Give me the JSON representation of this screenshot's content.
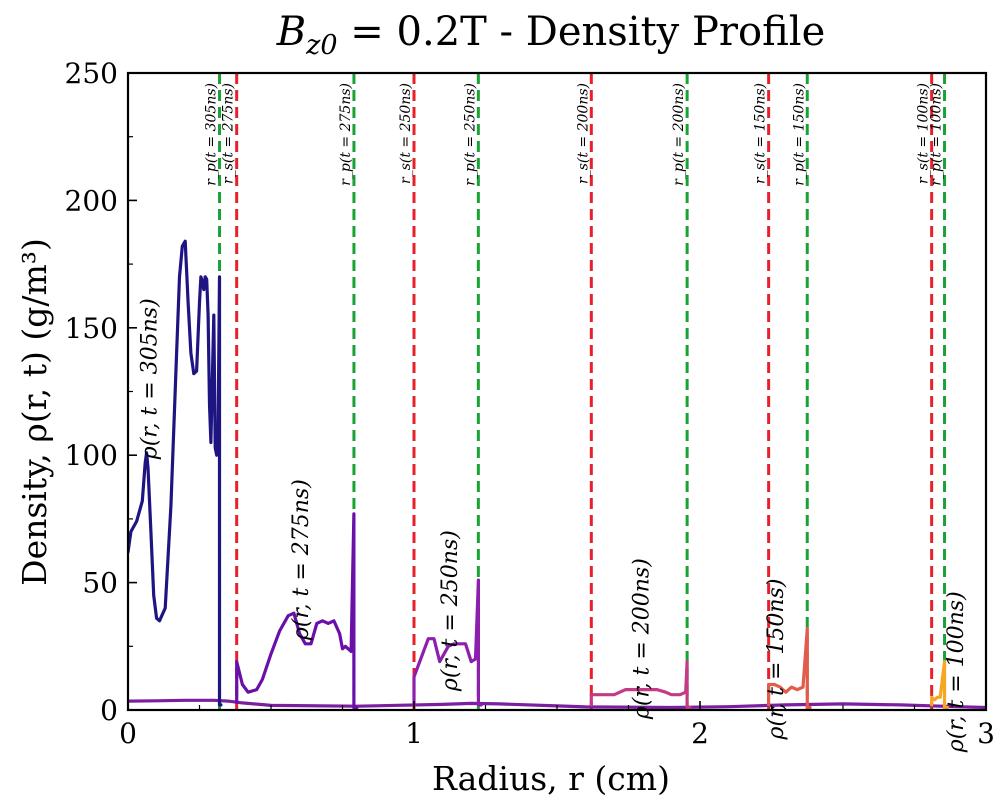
{
  "chart_data": {
    "type": "line",
    "title": "B_z0 = 0.2T - Density Profile",
    "title_parts": {
      "symbol": "B",
      "subscript": "z0",
      "rest": " = 0.2T - Density Profile"
    },
    "xlabel": "Radius, r (cm)",
    "ylabel": "Density, ρ(r, t) (g/m³)",
    "xlim": [
      0,
      3
    ],
    "ylim": [
      0,
      250
    ],
    "xticks": [
      0,
      1,
      2,
      3
    ],
    "xticklabels": [
      "0",
      "1",
      "2",
      "3"
    ],
    "yticks": [
      0,
      50,
      100,
      150,
      200,
      250
    ],
    "yticklabels": [
      "0",
      "50",
      "100",
      "150",
      "200",
      "250"
    ],
    "grid": false,
    "colors": {
      "shock_line": "#e8202a",
      "piston_line": "#1aa334",
      "t305": "#1f1582",
      "t275": "#6a10a8",
      "t250": "#8e1eac",
      "t200": "#c43a85",
      "t150": "#e35c4b",
      "t100": "#f5a623",
      "baseline": "#7b1fa0"
    },
    "series": [
      {
        "name": "ρ(r,t=305ns)",
        "label": "ρ(r, t = 305ns)",
        "color_key": "t305",
        "x": [
          0.0,
          0.01,
          0.03,
          0.05,
          0.06,
          0.065,
          0.07,
          0.08,
          0.09,
          0.1,
          0.11,
          0.13,
          0.15,
          0.17,
          0.18,
          0.19,
          0.2,
          0.21,
          0.22,
          0.23,
          0.24,
          0.25,
          0.255,
          0.26,
          0.265,
          0.27,
          0.275,
          0.28,
          0.285,
          0.29,
          0.3,
          0.305,
          0.31,
          0.315,
          0.32,
          0.32,
          0.325
        ],
        "y": [
          62,
          70,
          74,
          82,
          97,
          101,
          95,
          70,
          45,
          36,
          35,
          40,
          80,
          140,
          170,
          182,
          184,
          160,
          140,
          132,
          133,
          160,
          170,
          168,
          165,
          170,
          169,
          155,
          120,
          105,
          155,
          103,
          100,
          110,
          170,
          2,
          2
        ]
      },
      {
        "name": "ρ(r,t=275ns)",
        "label": "ρ(r, t = 275ns)",
        "color_key": "t275",
        "x": [
          0.38,
          0.38,
          0.4,
          0.42,
          0.45,
          0.47,
          0.5,
          0.53,
          0.56,
          0.58,
          0.6,
          0.62,
          0.64,
          0.66,
          0.68,
          0.7,
          0.72,
          0.74,
          0.75,
          0.76,
          0.78,
          0.79,
          0.79,
          0.8
        ],
        "y": [
          3,
          19,
          10,
          7,
          8,
          12,
          22,
          31,
          37,
          38,
          30,
          26,
          26,
          34,
          35,
          34,
          35,
          30,
          24,
          25,
          23,
          77,
          1,
          1
        ]
      },
      {
        "name": "ρ(r,t=250ns)",
        "label": "ρ(r, t = 250ns)",
        "color_key": "t250",
        "x": [
          1.0,
          1.0,
          1.03,
          1.05,
          1.07,
          1.09,
          1.12,
          1.14,
          1.16,
          1.18,
          1.2,
          1.215,
          1.225,
          1.225,
          1.235
        ],
        "y": [
          2,
          13,
          22,
          28,
          28,
          19,
          25,
          26,
          26,
          26,
          19,
          20,
          51,
          2,
          2
        ]
      },
      {
        "name": "ρ(r,t=200ns)",
        "label": "ρ(r, t = 200ns)",
        "color_key": "t200",
        "x": [
          1.62,
          1.62,
          1.64,
          1.7,
          1.74,
          1.8,
          1.85,
          1.88,
          1.9,
          1.93,
          1.95,
          1.955,
          1.955,
          1.965
        ],
        "y": [
          2,
          6,
          6,
          6,
          8,
          8,
          8,
          7,
          6,
          6,
          7,
          19,
          1,
          1
        ]
      },
      {
        "name": "ρ(r,t=150ns)",
        "label": "ρ(r, t = 150ns)",
        "color_key": "t150",
        "x": [
          2.24,
          2.24,
          2.26,
          2.28,
          2.3,
          2.32,
          2.34,
          2.36,
          2.375,
          2.375,
          2.385
        ],
        "y": [
          2,
          10,
          10,
          9,
          7,
          9,
          8,
          9,
          32,
          1,
          1
        ]
      },
      {
        "name": "ρ(r,t=100ns)",
        "label": "ρ(r, t = 100ns)",
        "color_key": "t100",
        "x": [
          2.81,
          2.81,
          2.82,
          2.83,
          2.84,
          2.855,
          2.855,
          2.865
        ],
        "y": [
          2,
          5,
          4,
          5,
          5,
          19,
          1,
          1
        ]
      },
      {
        "name": "baseline",
        "label": "",
        "color_key": "baseline",
        "x": [
          0.0,
          0.1,
          0.2,
          0.3,
          0.35,
          0.4,
          0.5,
          0.8,
          1.1,
          1.2,
          1.3,
          1.5,
          1.6,
          1.9,
          2.1,
          2.3,
          2.5,
          2.7,
          2.9,
          3.0
        ],
        "y": [
          3.5,
          3.6,
          3.8,
          3.8,
          3.5,
          2.8,
          1.8,
          1.5,
          2.2,
          2.6,
          2.4,
          1.6,
          1.2,
          1.0,
          1.3,
          2.0,
          2.4,
          2.0,
          1.3,
          1.0
        ]
      }
    ],
    "vlines": [
      {
        "type": "piston",
        "x": 0.32,
        "label": "r_p(t = 305ns)"
      },
      {
        "type": "shock",
        "x": 0.38,
        "label": "r_s(t = 275ns)"
      },
      {
        "type": "piston",
        "x": 0.79,
        "label": "r_p(t = 275ns)"
      },
      {
        "type": "shock",
        "x": 1.0,
        "label": "r_s(t = 250ns)"
      },
      {
        "type": "piston",
        "x": 1.225,
        "label": "r_p(t = 250ns)"
      },
      {
        "type": "shock",
        "x": 1.62,
        "label": "r_s(t = 200ns)"
      },
      {
        "type": "piston",
        "x": 1.955,
        "label": "r_p(t = 200ns)"
      },
      {
        "type": "shock",
        "x": 2.24,
        "label": "r_s(t = 150ns)"
      },
      {
        "type": "piston",
        "x": 2.375,
        "label": "r_p(t = 150ns)"
      },
      {
        "type": "shock",
        "x": 2.81,
        "label": "r_s(t = 100ns)"
      },
      {
        "type": "piston",
        "x": 2.855,
        "label": "r_p(t = 100ns)"
      }
    ],
    "annotations": [
      {
        "text": "ρ(r, t = 305ns)",
        "x": 0.1,
        "y": 130,
        "rotation": -90,
        "series": "t305"
      },
      {
        "text": "ρ(r, t = 275ns)",
        "x": 0.63,
        "y": 59,
        "rotation": -90,
        "series": "t275"
      },
      {
        "text": "ρ(r, t = 250ns)",
        "x": 1.15,
        "y": 39,
        "rotation": -90,
        "series": "t250"
      },
      {
        "text": "ρ(r, t = 200ns)",
        "x": 1.82,
        "y": 28,
        "rotation": -90,
        "series": "t200"
      },
      {
        "text": "ρ(r, t = 150ns)",
        "x": 2.29,
        "y": 20,
        "rotation": -90,
        "series": "t150"
      },
      {
        "text": "ρ(r, t = 100ns)",
        "x": 2.92,
        "y": 15,
        "rotation": -90,
        "series": "t100"
      }
    ]
  }
}
